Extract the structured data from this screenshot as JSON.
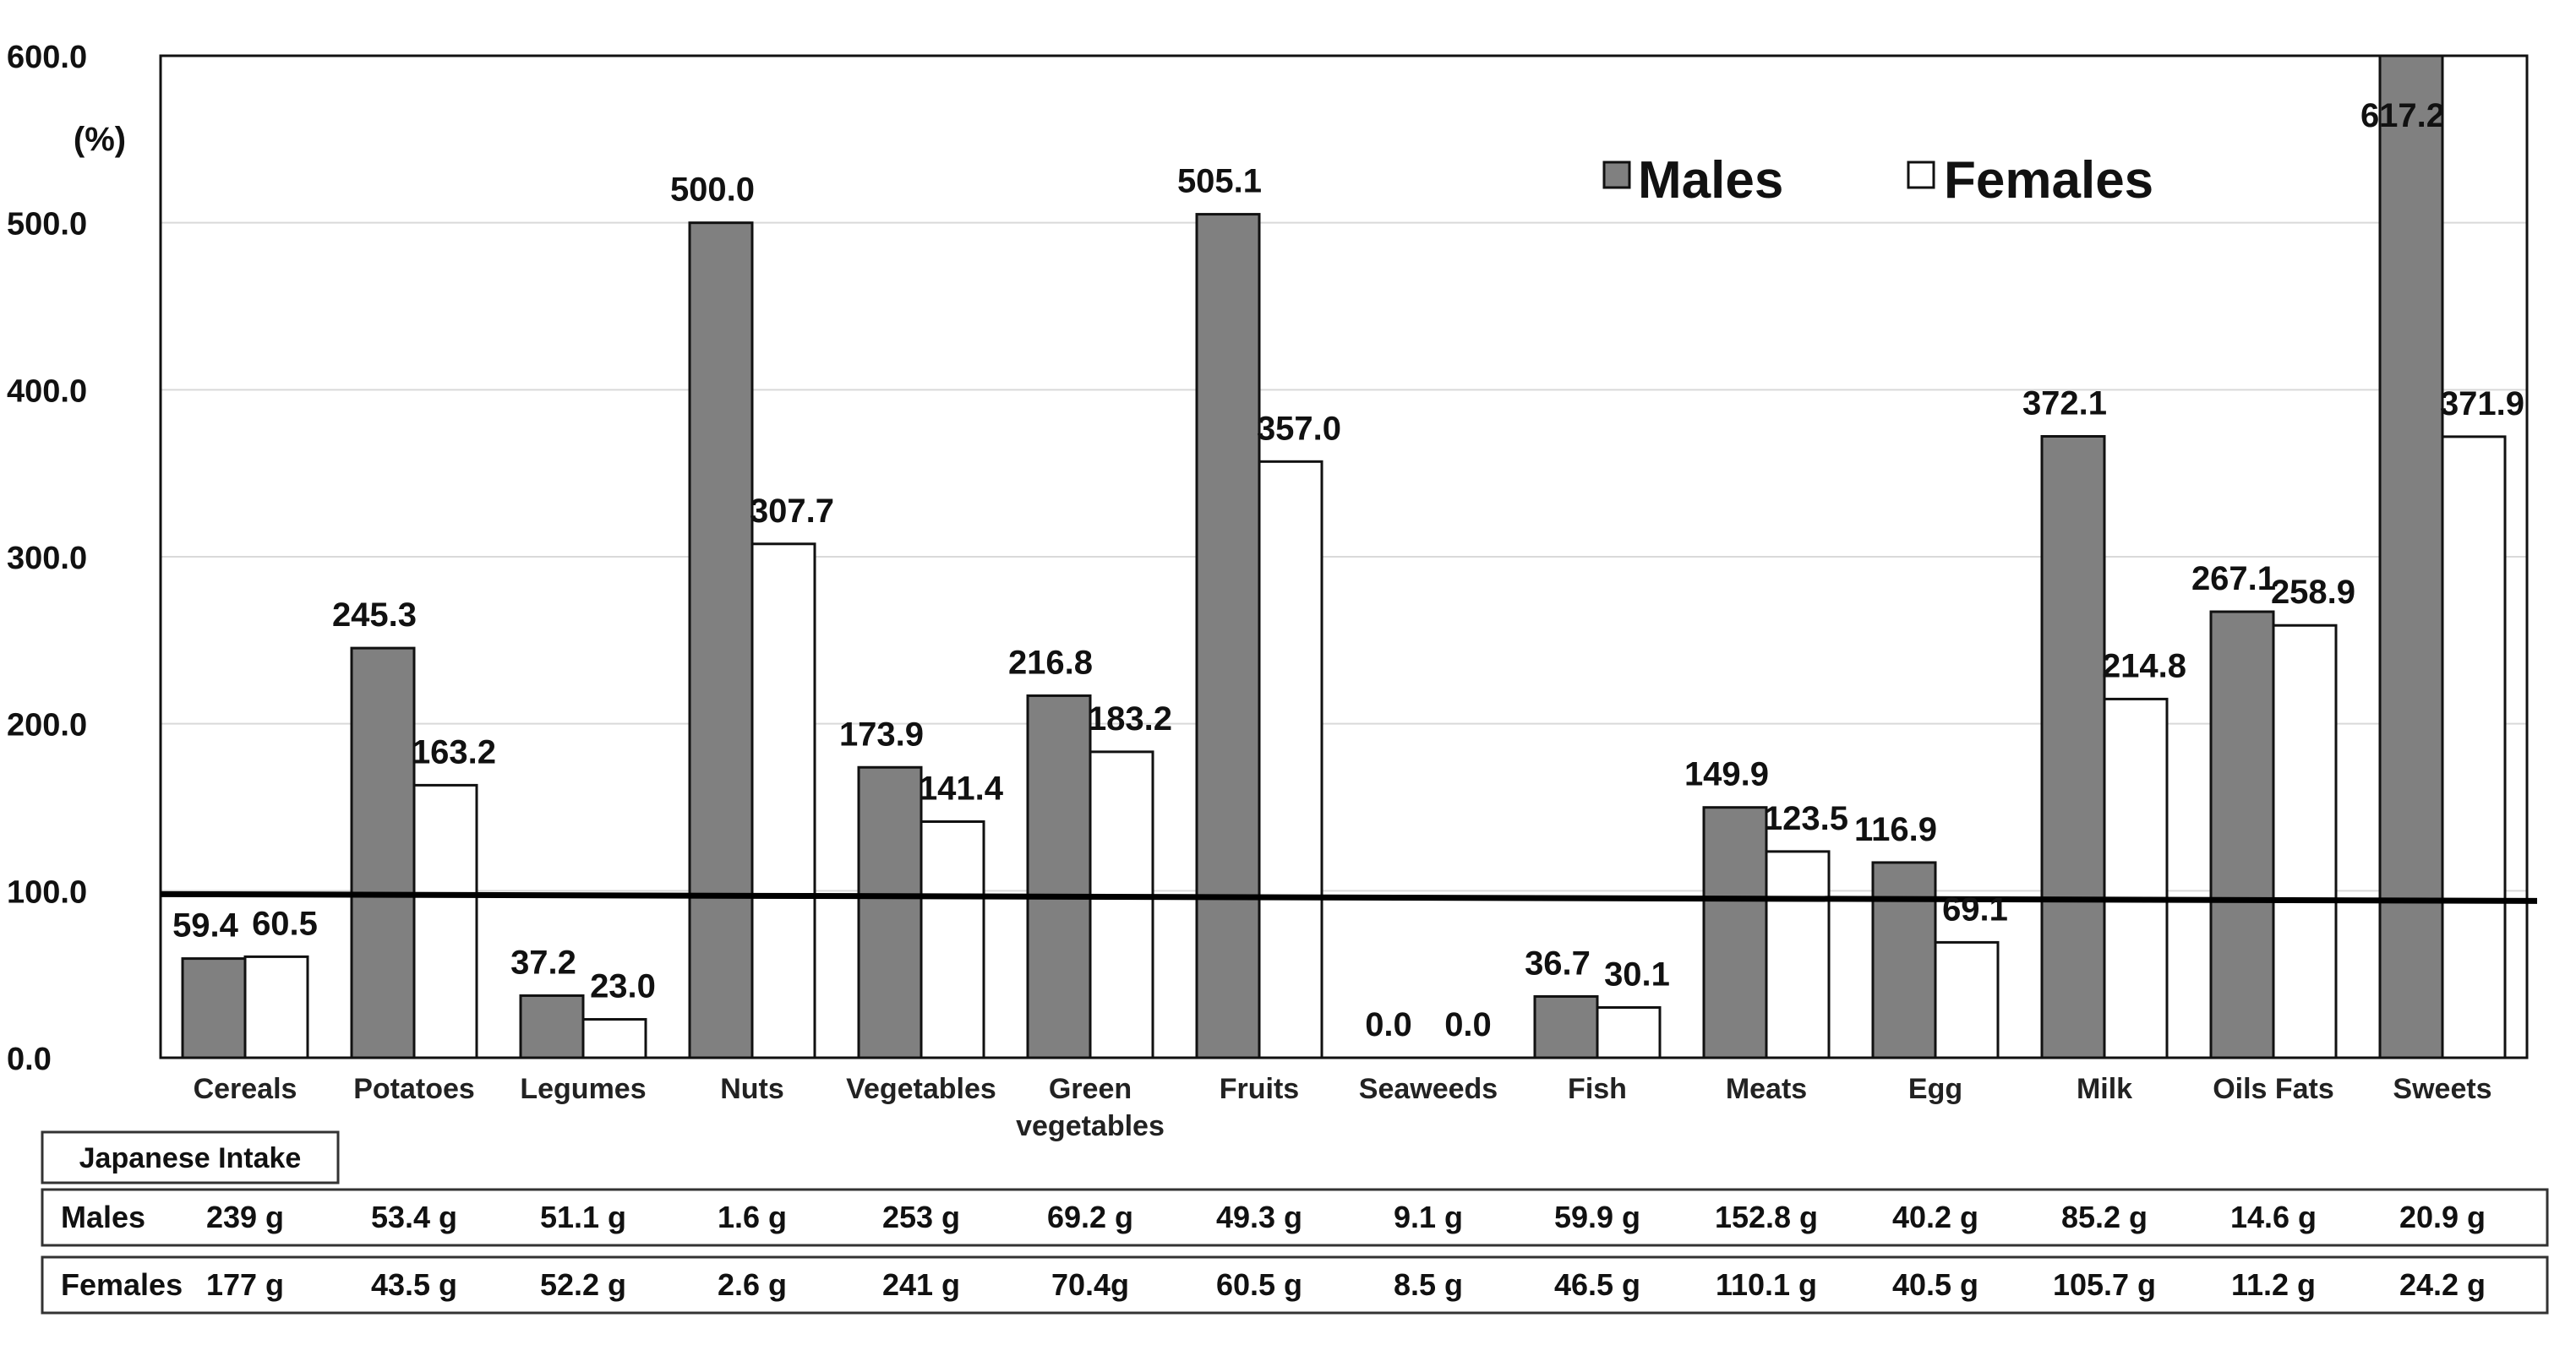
{
  "chart_data": {
    "type": "bar",
    "title": "",
    "ylabel": "(%)",
    "xlabel": "",
    "ylim": [
      0,
      600
    ],
    "yticks": [
      "0.0",
      "100.0",
      "200.0",
      "300.0",
      "400.0",
      "500.0",
      "600.0"
    ],
    "reference_line": 100,
    "legend": "top-right",
    "categories": [
      "Cereals",
      "Potatoes",
      "Legumes",
      "Nuts",
      "Vegetables",
      "Green vegetables",
      "Fruits",
      "Seaweeds",
      "Fish",
      "Meats",
      "Egg",
      "Milk",
      "Oils Fats",
      "Sweets"
    ],
    "series": [
      {
        "name": "Males",
        "color": "#808080",
        "values": [
          59.4,
          245.3,
          37.2,
          500.0,
          173.9,
          216.8,
          505.1,
          0.0,
          36.7,
          149.9,
          116.9,
          372.1,
          267.1,
          617.2
        ]
      },
      {
        "name": "Females",
        "color": "#ffffff",
        "values": [
          60.5,
          163.2,
          23.0,
          307.7,
          141.4,
          183.2,
          357.0,
          0.0,
          30.1,
          123.5,
          69.1,
          214.8,
          258.9,
          371.9
        ]
      }
    ]
  },
  "intake_table": {
    "title": "Japanese Intake",
    "rows": [
      {
        "label": "Males",
        "values": [
          "239 g",
          "53.4 g",
          "51.1 g",
          "1.6 g",
          "253 g",
          "69.2 g",
          "49.3 g",
          "9.1 g",
          "59.9 g",
          "152.8 g",
          "40.2 g",
          "85.2 g",
          "14.6 g",
          "20.9 g"
        ]
      },
      {
        "label": "Females",
        "values": [
          "177 g",
          "43.5 g",
          "52.2 g",
          "2.6 g",
          "241 g",
          "70.4g",
          "60.5 g",
          "8.5 g",
          "46.5 g",
          "110.1 g",
          "40.5 g",
          "105.7 g",
          "11.2 g",
          "24.2 g"
        ]
      }
    ]
  }
}
